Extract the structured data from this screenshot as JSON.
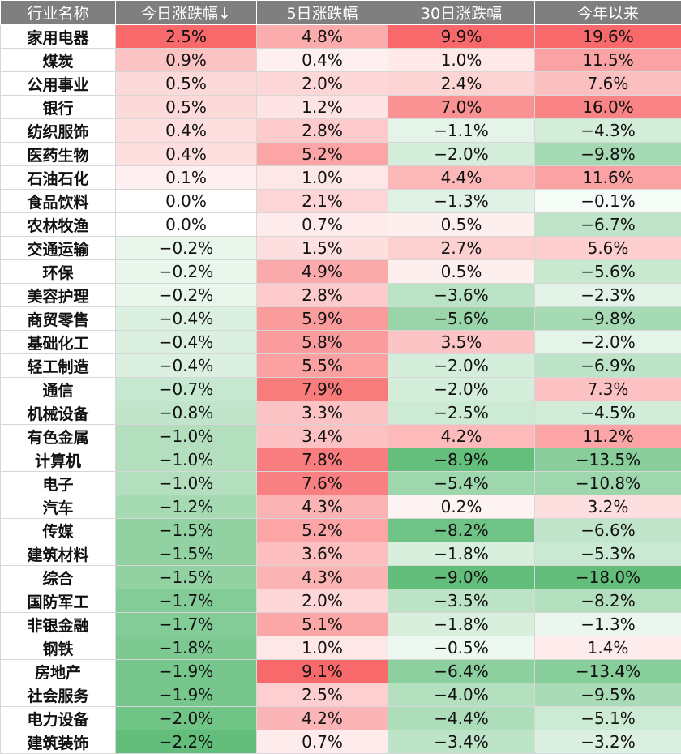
{
  "chart_data": {
    "type": "table",
    "columns": [
      "行业名称",
      "今日涨跌幅↓",
      "5日涨跌幅",
      "30日涨跌幅",
      "今年以来"
    ],
    "rows": [
      {
        "name": "家用电器",
        "values": [
          "2.5%",
          "4.8%",
          "9.9%",
          "19.6%"
        ]
      },
      {
        "name": "煤炭",
        "values": [
          "0.9%",
          "0.4%",
          "1.0%",
          "11.5%"
        ]
      },
      {
        "name": "公用事业",
        "values": [
          "0.5%",
          "2.0%",
          "2.4%",
          "7.6%"
        ]
      },
      {
        "name": "银行",
        "values": [
          "0.5%",
          "1.2%",
          "7.0%",
          "16.0%"
        ]
      },
      {
        "name": "纺织服饰",
        "values": [
          "0.4%",
          "2.8%",
          "−1.1%",
          "−4.3%"
        ]
      },
      {
        "name": "医药生物",
        "values": [
          "0.4%",
          "5.2%",
          "−2.0%",
          "−9.8%"
        ]
      },
      {
        "name": "石油石化",
        "values": [
          "0.1%",
          "1.0%",
          "4.4%",
          "11.6%"
        ]
      },
      {
        "name": "食品饮料",
        "values": [
          "0.0%",
          "2.1%",
          "−1.3%",
          "−0.1%"
        ]
      },
      {
        "name": "农林牧渔",
        "values": [
          "0.0%",
          "0.7%",
          "0.5%",
          "−6.7%"
        ]
      },
      {
        "name": "交通运输",
        "values": [
          "−0.2%",
          "1.5%",
          "2.7%",
          "5.6%"
        ]
      },
      {
        "name": "环保",
        "values": [
          "−0.2%",
          "4.9%",
          "0.5%",
          "−5.6%"
        ]
      },
      {
        "name": "美容护理",
        "values": [
          "−0.2%",
          "2.8%",
          "−3.6%",
          "−2.3%"
        ]
      },
      {
        "name": "商贸零售",
        "values": [
          "−0.4%",
          "5.9%",
          "−5.6%",
          "−9.8%"
        ]
      },
      {
        "name": "基础化工",
        "values": [
          "−0.4%",
          "5.8%",
          "3.5%",
          "−2.0%"
        ]
      },
      {
        "name": "轻工制造",
        "values": [
          "−0.4%",
          "5.5%",
          "−2.0%",
          "−6.9%"
        ]
      },
      {
        "name": "通信",
        "values": [
          "−0.7%",
          "7.9%",
          "−2.0%",
          "7.3%"
        ]
      },
      {
        "name": "机械设备",
        "values": [
          "−0.8%",
          "3.3%",
          "−2.5%",
          "−4.5%"
        ]
      },
      {
        "name": "有色金属",
        "values": [
          "−1.0%",
          "3.4%",
          "4.2%",
          "11.2%"
        ]
      },
      {
        "name": "计算机",
        "values": [
          "−1.0%",
          "7.8%",
          "−8.9%",
          "−13.5%"
        ]
      },
      {
        "name": "电子",
        "values": [
          "−1.0%",
          "7.6%",
          "−5.4%",
          "−10.8%"
        ]
      },
      {
        "name": "汽车",
        "values": [
          "−1.2%",
          "4.3%",
          "0.2%",
          "3.2%"
        ]
      },
      {
        "name": "传媒",
        "values": [
          "−1.5%",
          "5.2%",
          "−8.2%",
          "−6.6%"
        ]
      },
      {
        "name": "建筑材料",
        "values": [
          "−1.5%",
          "3.6%",
          "−1.8%",
          "−5.3%"
        ]
      },
      {
        "name": "综合",
        "values": [
          "−1.5%",
          "4.3%",
          "−9.0%",
          "−18.0%"
        ]
      },
      {
        "name": "国防军工",
        "values": [
          "−1.7%",
          "2.0%",
          "−3.5%",
          "−8.2%"
        ]
      },
      {
        "name": "非银金融",
        "values": [
          "−1.7%",
          "5.1%",
          "−1.8%",
          "−1.3%"
        ]
      },
      {
        "name": "钢铁",
        "values": [
          "−1.8%",
          "1.0%",
          "−0.5%",
          "1.4%"
        ]
      },
      {
        "name": "房地产",
        "values": [
          "−1.9%",
          "9.1%",
          "−6.4%",
          "−13.4%"
        ]
      },
      {
        "name": "社会服务",
        "values": [
          "−1.9%",
          "2.5%",
          "−4.0%",
          "−9.5%"
        ]
      },
      {
        "name": "电力设备",
        "values": [
          "−2.0%",
          "4.2%",
          "−4.4%",
          "−5.1%"
        ]
      },
      {
        "name": "建筑装饰",
        "values": [
          "−2.2%",
          "0.7%",
          "−3.4%",
          "−3.2%"
        ]
      }
    ],
    "color_scale": {
      "positive": "#f8696b",
      "negative": "#63be7b",
      "neutral": "#ffffff"
    }
  }
}
